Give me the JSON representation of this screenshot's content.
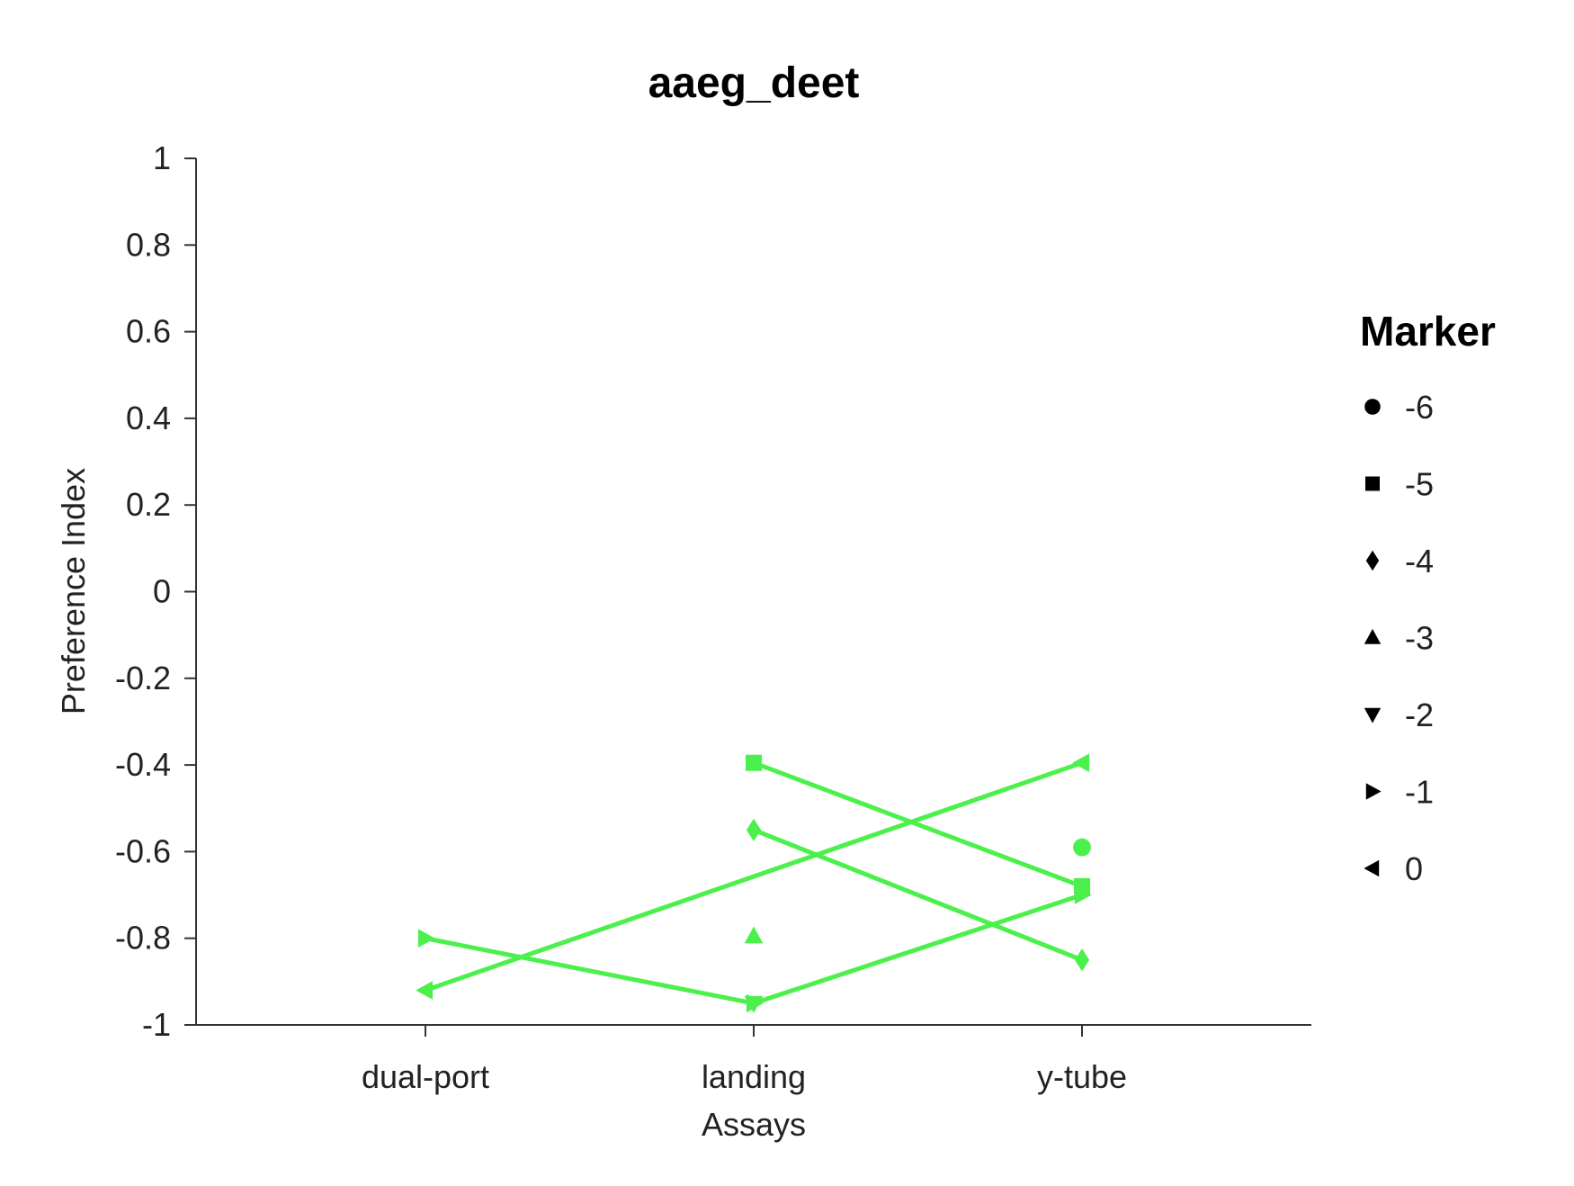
{
  "chart_data": {
    "type": "line",
    "title": "aaeg_deet",
    "xlabel": "Assays",
    "ylabel": "Preference Index",
    "categories": [
      "dual-port",
      "landing",
      "y-tube"
    ],
    "ylim": [
      -1,
      1
    ],
    "yticks": [
      1,
      0.8,
      0.6,
      0.4,
      0.2,
      0,
      -0.2,
      -0.4,
      -0.6,
      -0.8,
      -1
    ],
    "ytick_labels": [
      "1",
      "0.8",
      "0.6",
      "0.4",
      "0.2",
      "0",
      "-0.2",
      "-0.4",
      "-0.6",
      "-0.8",
      "-1"
    ],
    "color": "#4cf04c",
    "grid": false,
    "legend_placement": "right",
    "legend": {
      "title": "Marker",
      "entries": [
        {
          "label": "-6",
          "marker": "circle"
        },
        {
          "label": "-5",
          "marker": "square"
        },
        {
          "label": "-4",
          "marker": "diamond"
        },
        {
          "label": "-3",
          "marker": "triangle-up"
        },
        {
          "label": "-2",
          "marker": "triangle-down"
        },
        {
          "label": "-1",
          "marker": "triangle-right"
        },
        {
          "label": "0",
          "marker": "triangle-left"
        }
      ]
    },
    "series": [
      {
        "marker": "circle",
        "values": [
          null,
          null,
          -0.59
        ]
      },
      {
        "marker": "square",
        "values": [
          null,
          -0.395,
          -0.68
        ]
      },
      {
        "marker": "diamond",
        "values": [
          null,
          -0.55,
          -0.85
        ]
      },
      {
        "marker": "triangle-up",
        "values": [
          null,
          -0.795,
          null
        ]
      },
      {
        "marker": "triangle-down",
        "values": [
          null,
          -0.95,
          null
        ]
      },
      {
        "marker": "triangle-right",
        "values": [
          -0.8,
          -0.95,
          -0.7
        ]
      },
      {
        "marker": "triangle-left",
        "values": [
          -0.92,
          null,
          -0.395
        ]
      }
    ]
  }
}
